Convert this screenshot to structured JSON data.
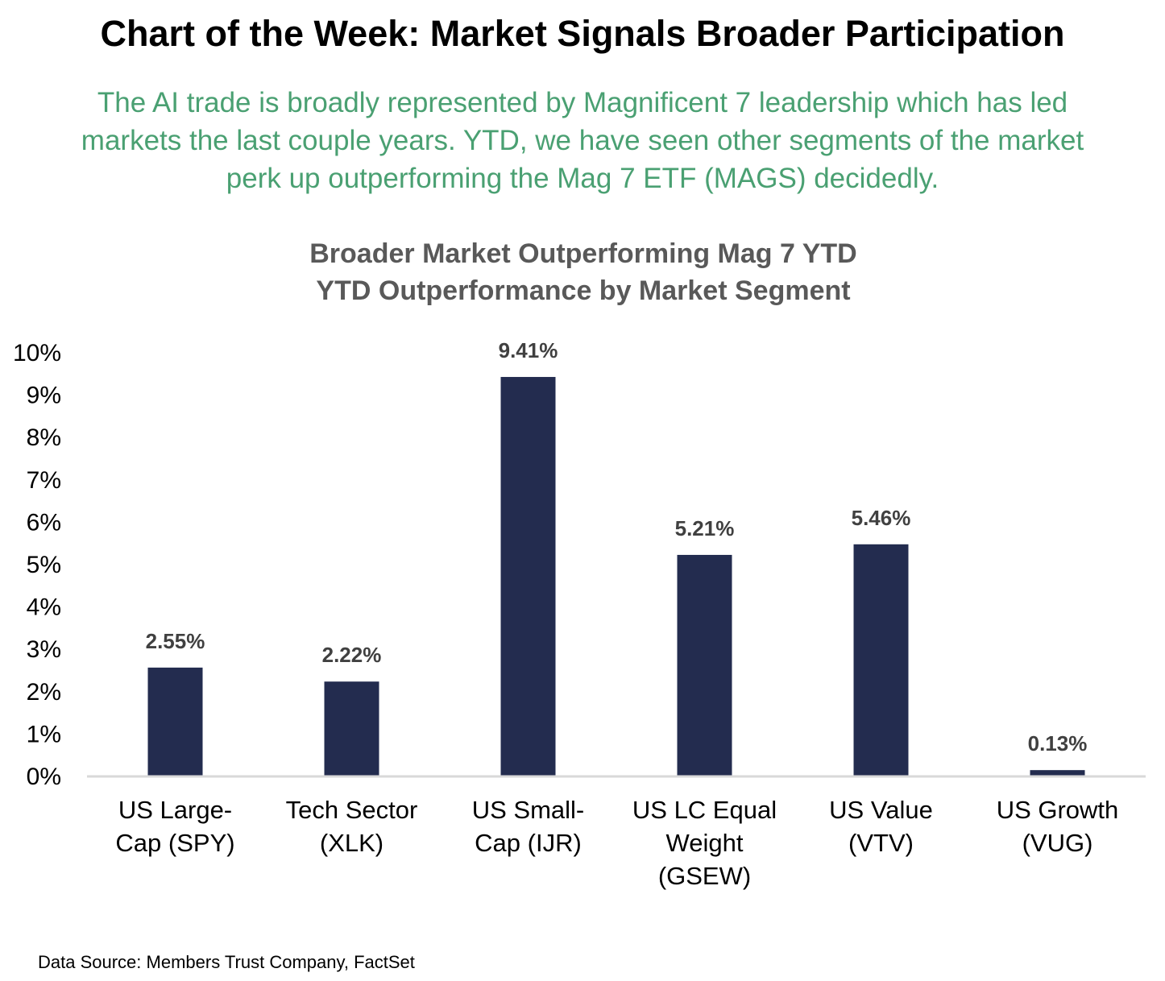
{
  "page": {
    "headline": "Chart of the Week: Market Signals Broader Participation",
    "subtitle_lines": [
      "The AI trade is broadly represented by Magnificent 7 leadership which has led",
      "markets the last couple years. YTD, we have seen other segments of the market",
      "perk up outperforming the Mag 7 ETF (MAGS) decidedly."
    ],
    "subtitle_color": "#4aa072",
    "footer": "Data Source: Members Trust Company, FactSet"
  },
  "chart_data": {
    "type": "bar",
    "title": "Broader Market Outperforming Mag 7 YTD",
    "subtitle": "YTD Outperformance by Market Segment",
    "xlabel": "",
    "ylabel": "",
    "categories": [
      [
        "US Large-",
        "Cap (SPY)"
      ],
      [
        "Tech Sector",
        "(XLK)"
      ],
      [
        "US Small-",
        "Cap (IJR)"
      ],
      [
        "US LC Equal",
        "Weight",
        "(GSEW)"
      ],
      [
        "US Value",
        "(VTV)"
      ],
      [
        "US Growth",
        "(VUG)"
      ]
    ],
    "values": [
      2.55,
      2.22,
      9.41,
      5.21,
      5.46,
      0.13
    ],
    "data_labels": [
      "2.55%",
      "2.22%",
      "9.41%",
      "5.21%",
      "5.46%",
      "0.13%"
    ],
    "ylim": [
      0,
      10
    ],
    "yticks": [
      0,
      1,
      2,
      3,
      4,
      5,
      6,
      7,
      8,
      9,
      10
    ],
    "ytick_labels": [
      "0%",
      "1%",
      "2%",
      "3%",
      "4%",
      "5%",
      "6%",
      "7%",
      "8%",
      "9%",
      "10%"
    ],
    "bar_color": "#232c4f",
    "axis_color": "#d9d9d9",
    "grid": false,
    "legend": "none"
  }
}
